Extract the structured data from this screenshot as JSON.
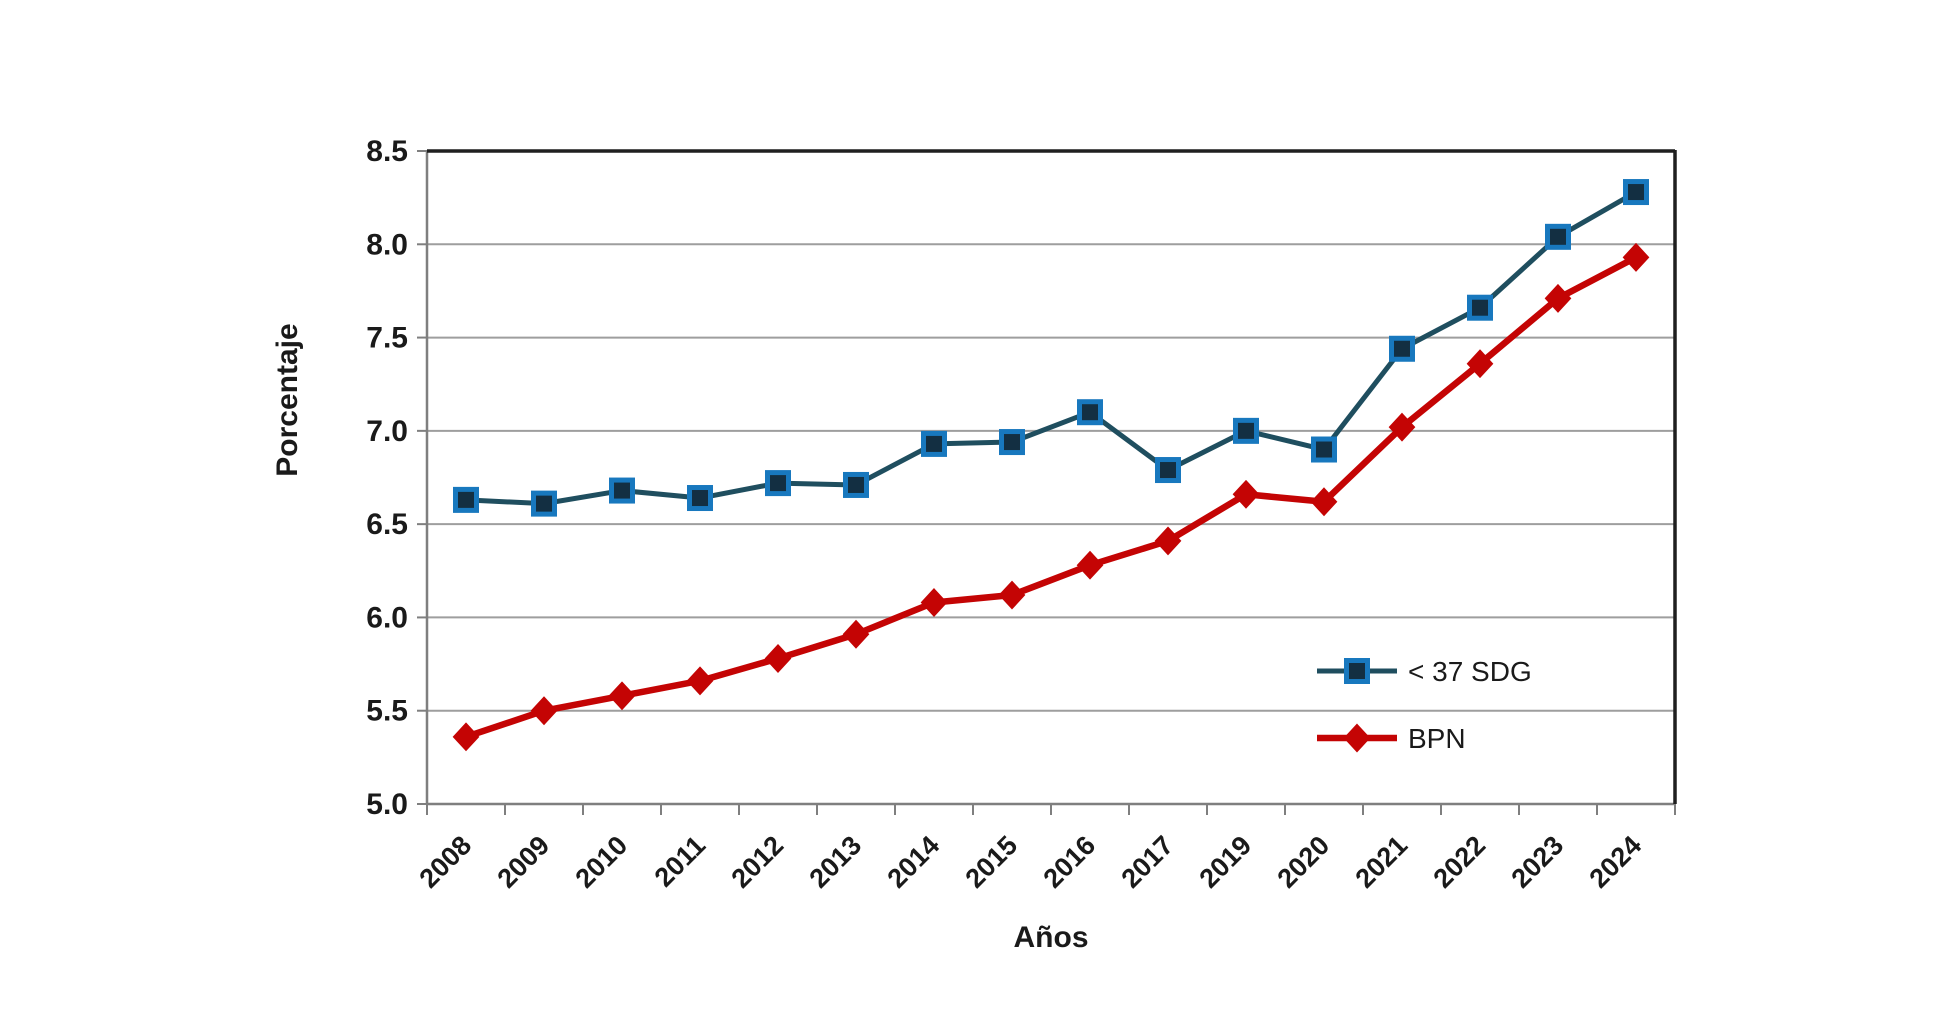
{
  "chart_data": {
    "type": "line",
    "title": "",
    "xlabel": "Años",
    "ylabel": "Porcentaje",
    "ylim": [
      5.0,
      8.5
    ],
    "ytick_step": 0.5,
    "ytick_labels": [
      "5.0",
      "5.5",
      "6.0",
      "6.5",
      "7.0",
      "7.5",
      "8.0",
      "8.5"
    ],
    "grid": true,
    "legend_position": "inside-right",
    "categories": [
      "2008",
      "2009",
      "2010",
      "2011",
      "2012",
      "2013",
      "2014",
      "2015",
      "2016",
      "2017",
      "2019",
      "2020",
      "2021",
      "2022",
      "2023",
      "2024"
    ],
    "series": [
      {
        "name": "< 37 SDG",
        "marker": "square",
        "line_color": "#1F4E5F",
        "marker_fill": "#132F42",
        "marker_stroke": "#1878BE",
        "values": [
          6.63,
          6.61,
          6.68,
          6.64,
          6.72,
          6.71,
          6.93,
          6.94,
          7.1,
          6.79,
          7.0,
          6.9,
          7.44,
          7.66,
          8.04,
          8.28
        ]
      },
      {
        "name": "BPN",
        "marker": "diamond",
        "line_color": "#C40404",
        "marker_fill": "#C40404",
        "marker_stroke": "#C40404",
        "values": [
          5.36,
          5.5,
          5.58,
          5.66,
          5.78,
          5.91,
          6.08,
          6.12,
          6.28,
          6.41,
          6.66,
          6.62,
          7.02,
          7.36,
          7.71,
          7.93
        ]
      }
    ],
    "colors": {
      "gridline": "#9E9E9E",
      "axis_left_bottom": "#7F7F7F",
      "border_top_right": "#1f1f1f",
      "tick_text": "#1a1a1a",
      "legend_text": "#1a1a1a",
      "plot_background": "#ffffff"
    }
  }
}
